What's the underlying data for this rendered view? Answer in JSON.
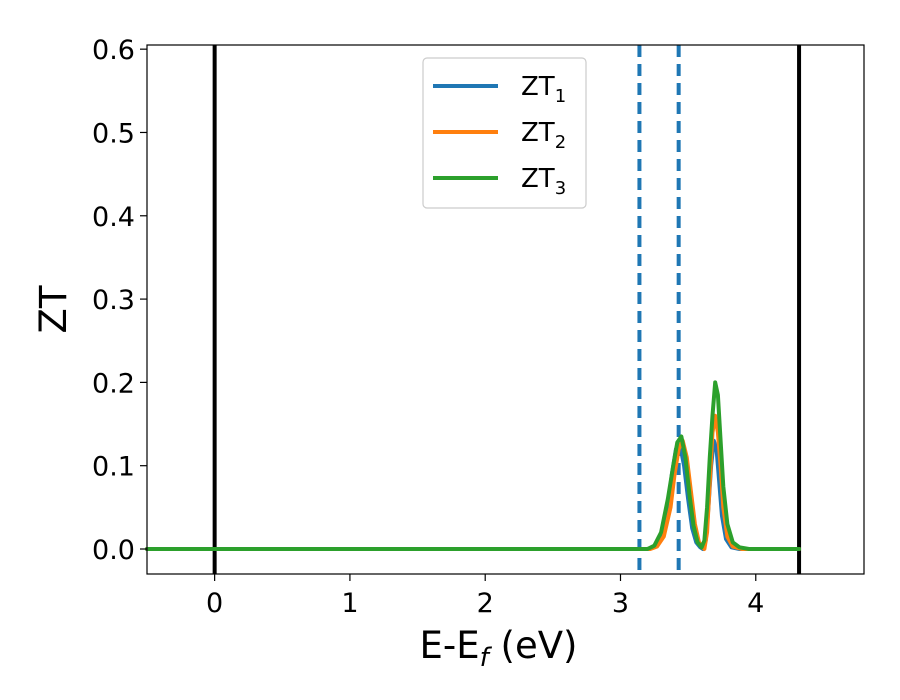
{
  "chart_data": {
    "type": "line",
    "xlabel": "E-E",
    "xlabel_sub": "f",
    "xlabel_unit": " (eV)",
    "ylabel": "ZT",
    "xlim": [
      -0.5,
      4.8
    ],
    "ylim": [
      -0.03,
      0.605
    ],
    "xticks": [
      0,
      1,
      2,
      3,
      4
    ],
    "xtick_labels": [
      "0",
      "1",
      "2",
      "3",
      "4"
    ],
    "yticks": [
      0.0,
      0.1,
      0.2,
      0.3,
      0.4,
      0.5,
      0.6
    ],
    "ytick_labels": [
      "0.0",
      "0.1",
      "0.2",
      "0.3",
      "0.4",
      "0.5",
      "0.6"
    ],
    "grid": false,
    "legend_position": "top-center",
    "vlines_solid": [
      0,
      4.32
    ],
    "vlines_dashed": [
      3.14,
      3.43
    ],
    "series": [
      {
        "name": "ZT",
        "sub": "1",
        "color": "#1f77b4",
        "x": [
          -0.5,
          3.2,
          3.25,
          3.3,
          3.35,
          3.38,
          3.41,
          3.44,
          3.47,
          3.5,
          3.53,
          3.56,
          3.59,
          3.61,
          3.63,
          3.65,
          3.67,
          3.69,
          3.71,
          3.73,
          3.75,
          3.78,
          3.82,
          3.88,
          4.32
        ],
        "y": [
          0.0,
          0.0,
          0.003,
          0.015,
          0.05,
          0.09,
          0.12,
          0.125,
          0.1,
          0.06,
          0.025,
          0.008,
          0.002,
          0.0,
          0.01,
          0.05,
          0.1,
          0.13,
          0.12,
          0.08,
          0.04,
          0.012,
          0.002,
          0.0,
          0.0
        ]
      },
      {
        "name": "ZT",
        "sub": "2",
        "color": "#ff7f0e",
        "x": [
          -0.5,
          3.22,
          3.27,
          3.32,
          3.37,
          3.4,
          3.43,
          3.46,
          3.49,
          3.52,
          3.55,
          3.58,
          3.62,
          3.64,
          3.66,
          3.68,
          3.7,
          3.72,
          3.74,
          3.76,
          3.79,
          3.83,
          3.9,
          4.32
        ],
        "y": [
          0.0,
          0.0,
          0.003,
          0.015,
          0.05,
          0.09,
          0.12,
          0.13,
          0.11,
          0.07,
          0.03,
          0.008,
          0.0,
          0.02,
          0.08,
          0.14,
          0.16,
          0.14,
          0.1,
          0.05,
          0.015,
          0.003,
          0.0,
          0.0
        ]
      },
      {
        "name": "ZT",
        "sub": "3",
        "color": "#2ca02c",
        "x": [
          -0.5,
          3.2,
          3.25,
          3.3,
          3.35,
          3.39,
          3.42,
          3.45,
          3.48,
          3.51,
          3.54,
          3.57,
          3.6,
          3.62,
          3.64,
          3.66,
          3.68,
          3.7,
          3.72,
          3.74,
          3.76,
          3.79,
          3.83,
          3.88,
          3.95,
          4.32
        ],
        "y": [
          0.0,
          0.0,
          0.004,
          0.02,
          0.06,
          0.1,
          0.128,
          0.135,
          0.11,
          0.065,
          0.028,
          0.008,
          0.002,
          0.01,
          0.05,
          0.11,
          0.16,
          0.2,
          0.185,
          0.13,
          0.075,
          0.03,
          0.008,
          0.002,
          0.0,
          0.0
        ]
      }
    ]
  }
}
